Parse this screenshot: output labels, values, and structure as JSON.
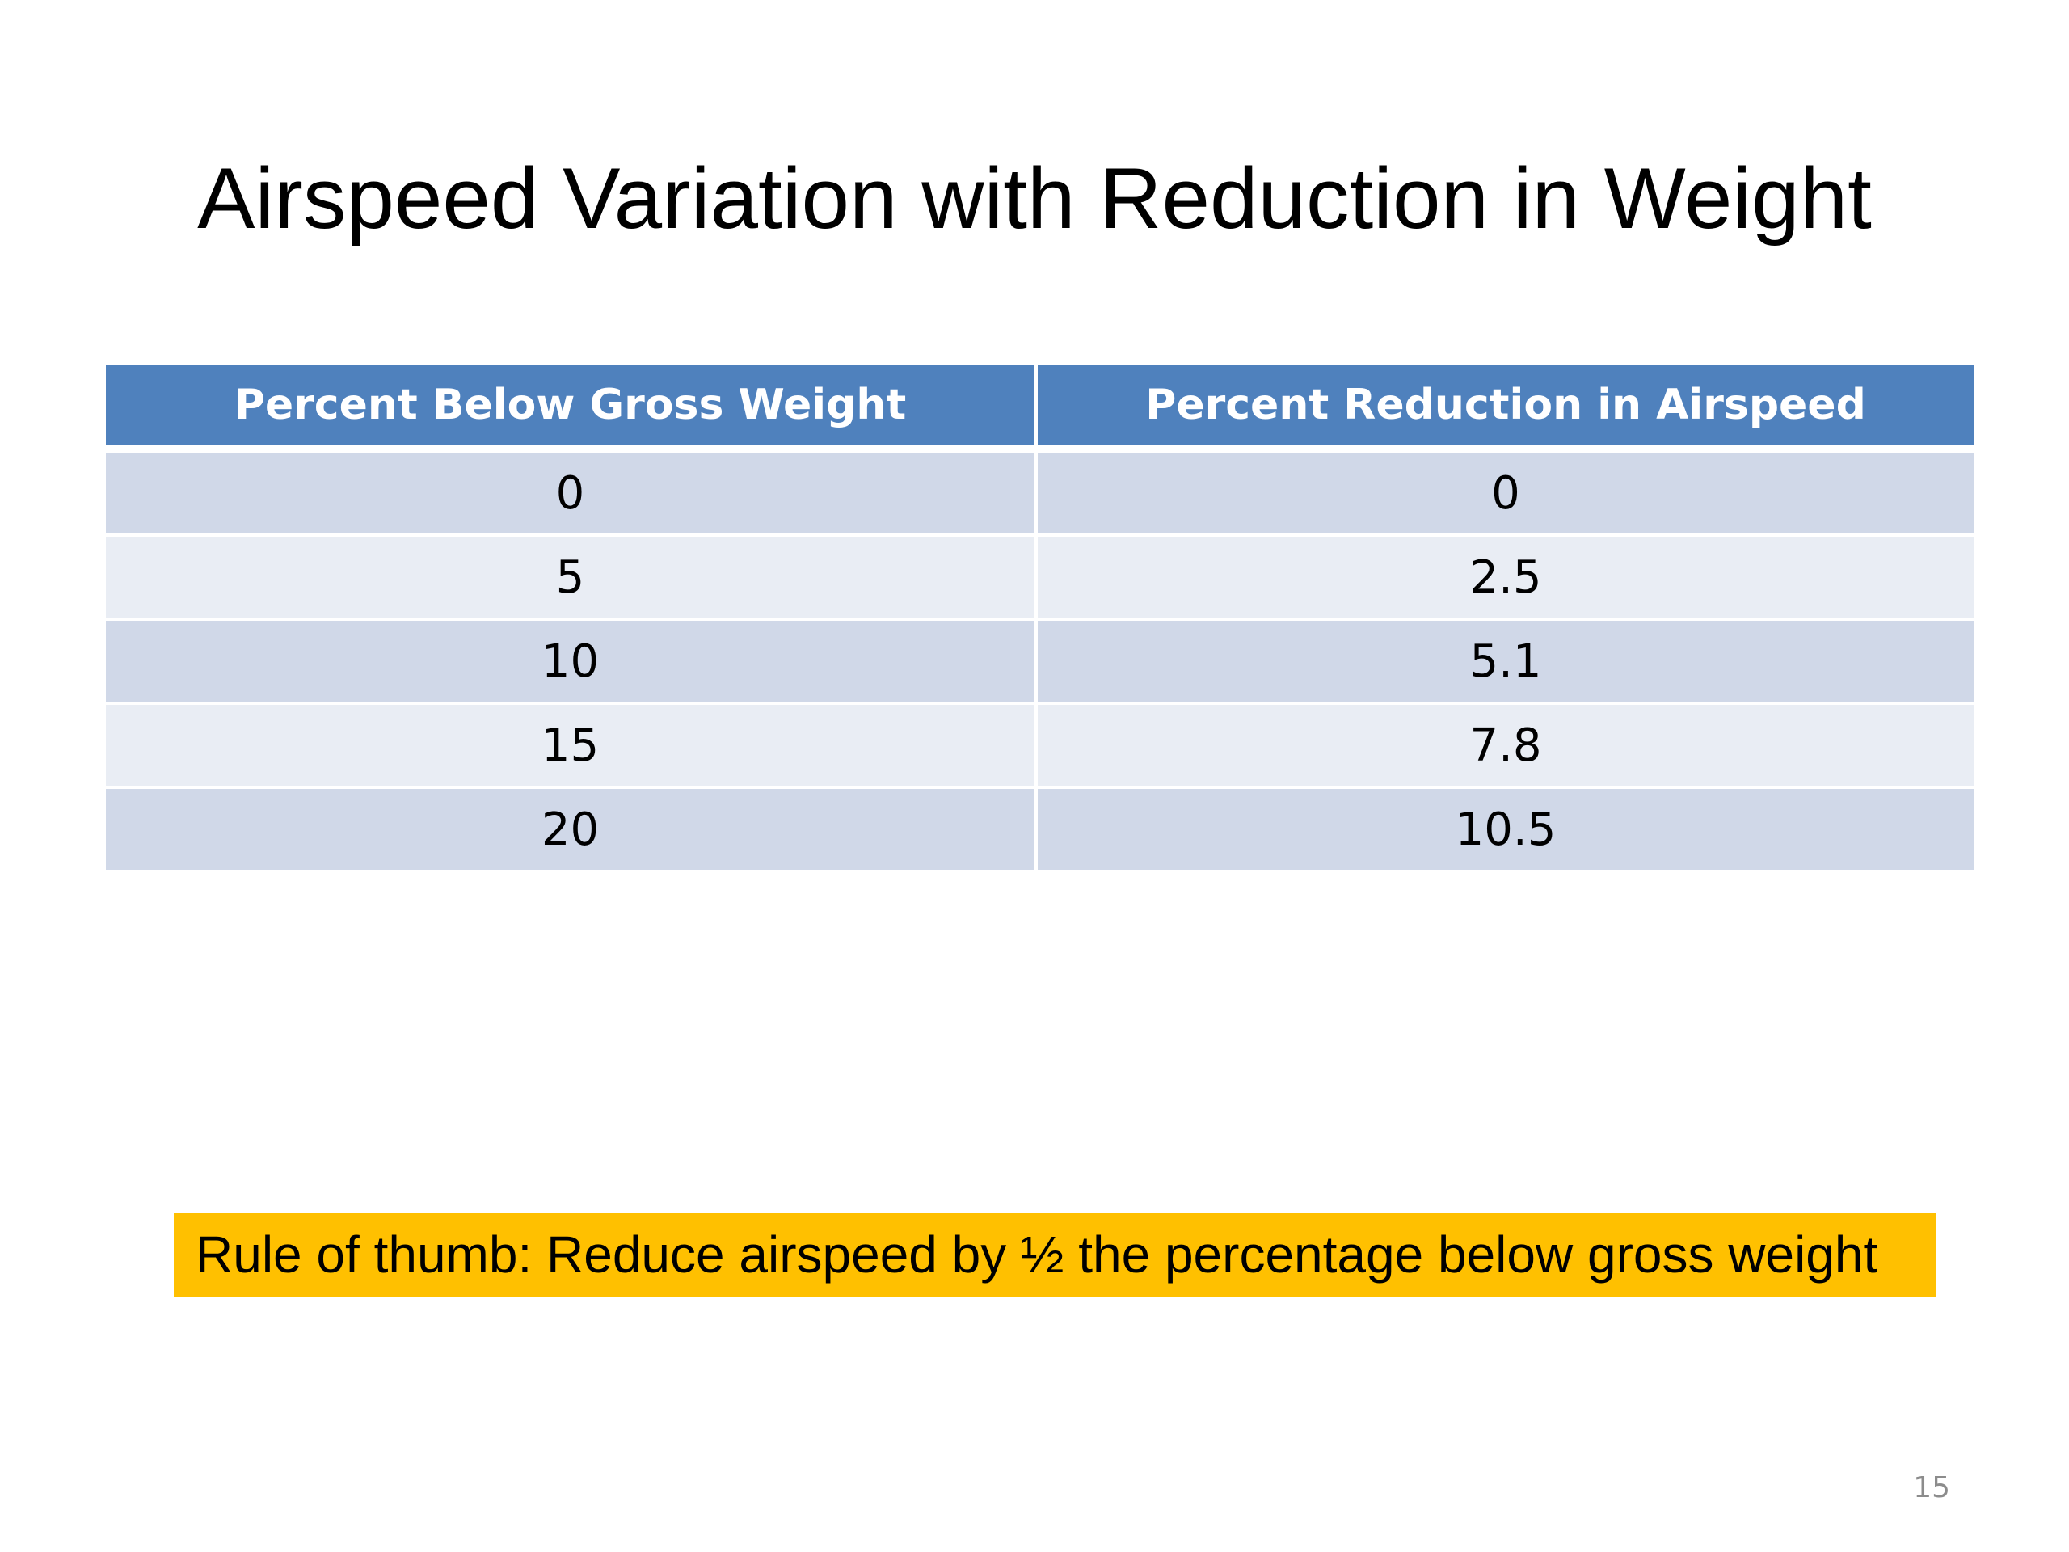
{
  "slide": {
    "title": "Airspeed Variation with Reduction in Weight",
    "page_number": "15"
  },
  "table": {
    "headers": [
      "Percent Below Gross Weight",
      "Percent Reduction in Airspeed"
    ],
    "rows": [
      [
        "0",
        "0"
      ],
      [
        "5",
        "2.5"
      ],
      [
        "10",
        "5.1"
      ],
      [
        "15",
        "7.8"
      ],
      [
        "20",
        "10.5"
      ]
    ]
  },
  "callout": {
    "text": "Rule of thumb: Reduce airspeed by ½ the percentage below gross weight"
  },
  "colors": {
    "header_fill": "#4f81bd",
    "row_fill_dark": "#d0d8e8",
    "row_fill_light": "#e9edf4",
    "callout_fill": "#ffc000"
  }
}
